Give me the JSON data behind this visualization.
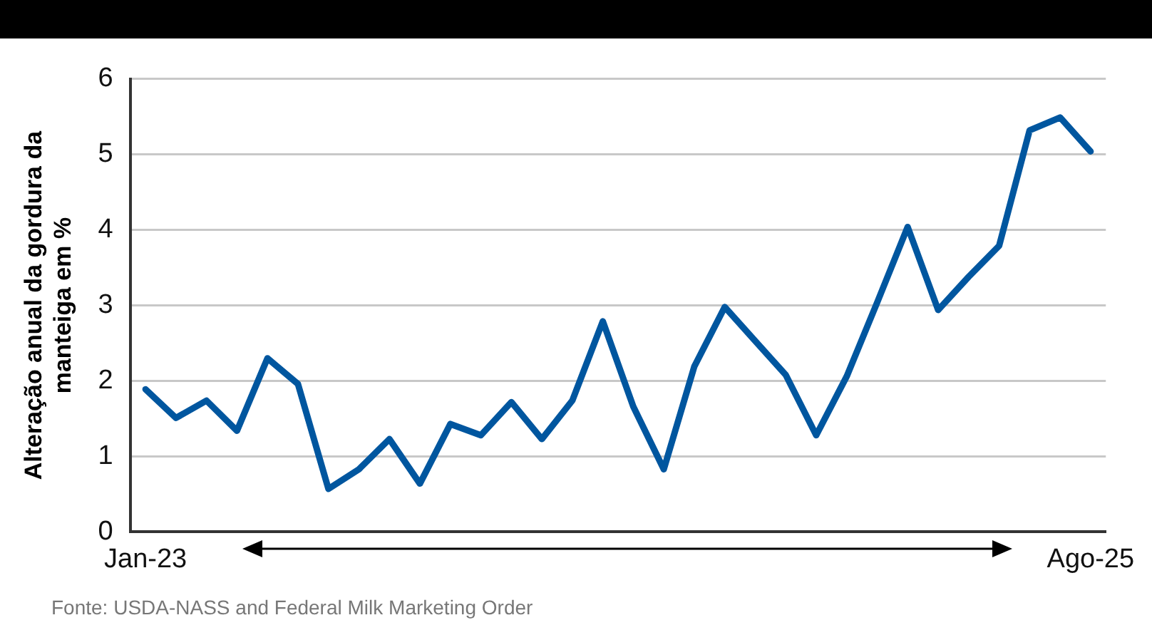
{
  "chart_data": {
    "type": "line",
    "ylabel": "Alteração anual da gordura da manteiga em %",
    "categories": [
      "Jan-23",
      null,
      null,
      null,
      null,
      null,
      null,
      null,
      null,
      null,
      null,
      null,
      null,
      null,
      null,
      null,
      null,
      null,
      null,
      null,
      null,
      null,
      null,
      null,
      null,
      null,
      null,
      null,
      null,
      null,
      null,
      "Ago-25"
    ],
    "series": [
      {
        "color": "#00569f",
        "values": [
          1.89,
          1.51,
          1.74,
          1.34,
          2.3,
          1.96,
          0.57,
          0.83,
          1.23,
          0.64,
          1.43,
          1.28,
          1.72,
          1.23,
          1.74,
          2.79,
          1.66,
          0.83,
          2.19,
          2.98,
          2.53,
          2.08,
          1.28,
          2.06,
          3.04,
          4.04,
          2.94,
          3.38,
          3.79,
          5.32,
          5.49,
          5.04
        ]
      }
    ],
    "ylim": [
      0,
      6
    ],
    "yticks": [
      0,
      1,
      2,
      3,
      4,
      5,
      6
    ],
    "grid": "y",
    "legend": false,
    "marker": "none",
    "line_style": "solid",
    "annotations": [
      "Fonte: USDA-NASS and Federal Milk Marketing Order"
    ]
  }
}
